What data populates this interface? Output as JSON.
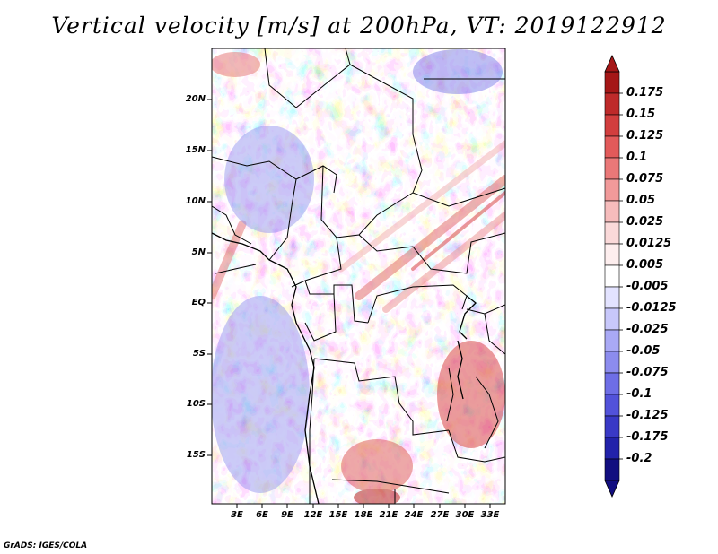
{
  "title": "Vertical velocity [m/s] at 200hPa, VT: 2019122912",
  "credit": "GrADS: IGES/COLA",
  "map": {
    "lat_labels": [
      "20N",
      "15N",
      "10N",
      "5N",
      "EQ",
      "5S",
      "10S",
      "15S"
    ],
    "lon_labels": [
      "3E",
      "6E",
      "9E",
      "12E",
      "15E",
      "18E",
      "21E",
      "24E",
      "27E",
      "30E",
      "33E"
    ]
  },
  "colorbar": {
    "labels": [
      "0.175",
      "0.15",
      "0.125",
      "0.1",
      "0.075",
      "0.05",
      "0.025",
      "0.0125",
      "0.005",
      "-0.005",
      "-0.0125",
      "-0.025",
      "-0.05",
      "-0.075",
      "-0.1",
      "-0.125",
      "-0.175",
      "-0.2"
    ],
    "colors": [
      "#a51717",
      "#be2a2a",
      "#d23e3e",
      "#e25a5a",
      "#ea7878",
      "#f19a9a",
      "#f6bcbc",
      "#fad9d9",
      "#fdeeee",
      "#ffffff",
      "#e3e3ff",
      "#c8c8fb",
      "#a9a9f5",
      "#8c8cee",
      "#6e6ee6",
      "#5252da",
      "#3939c6",
      "#2222aa",
      "#120e80"
    ]
  }
}
